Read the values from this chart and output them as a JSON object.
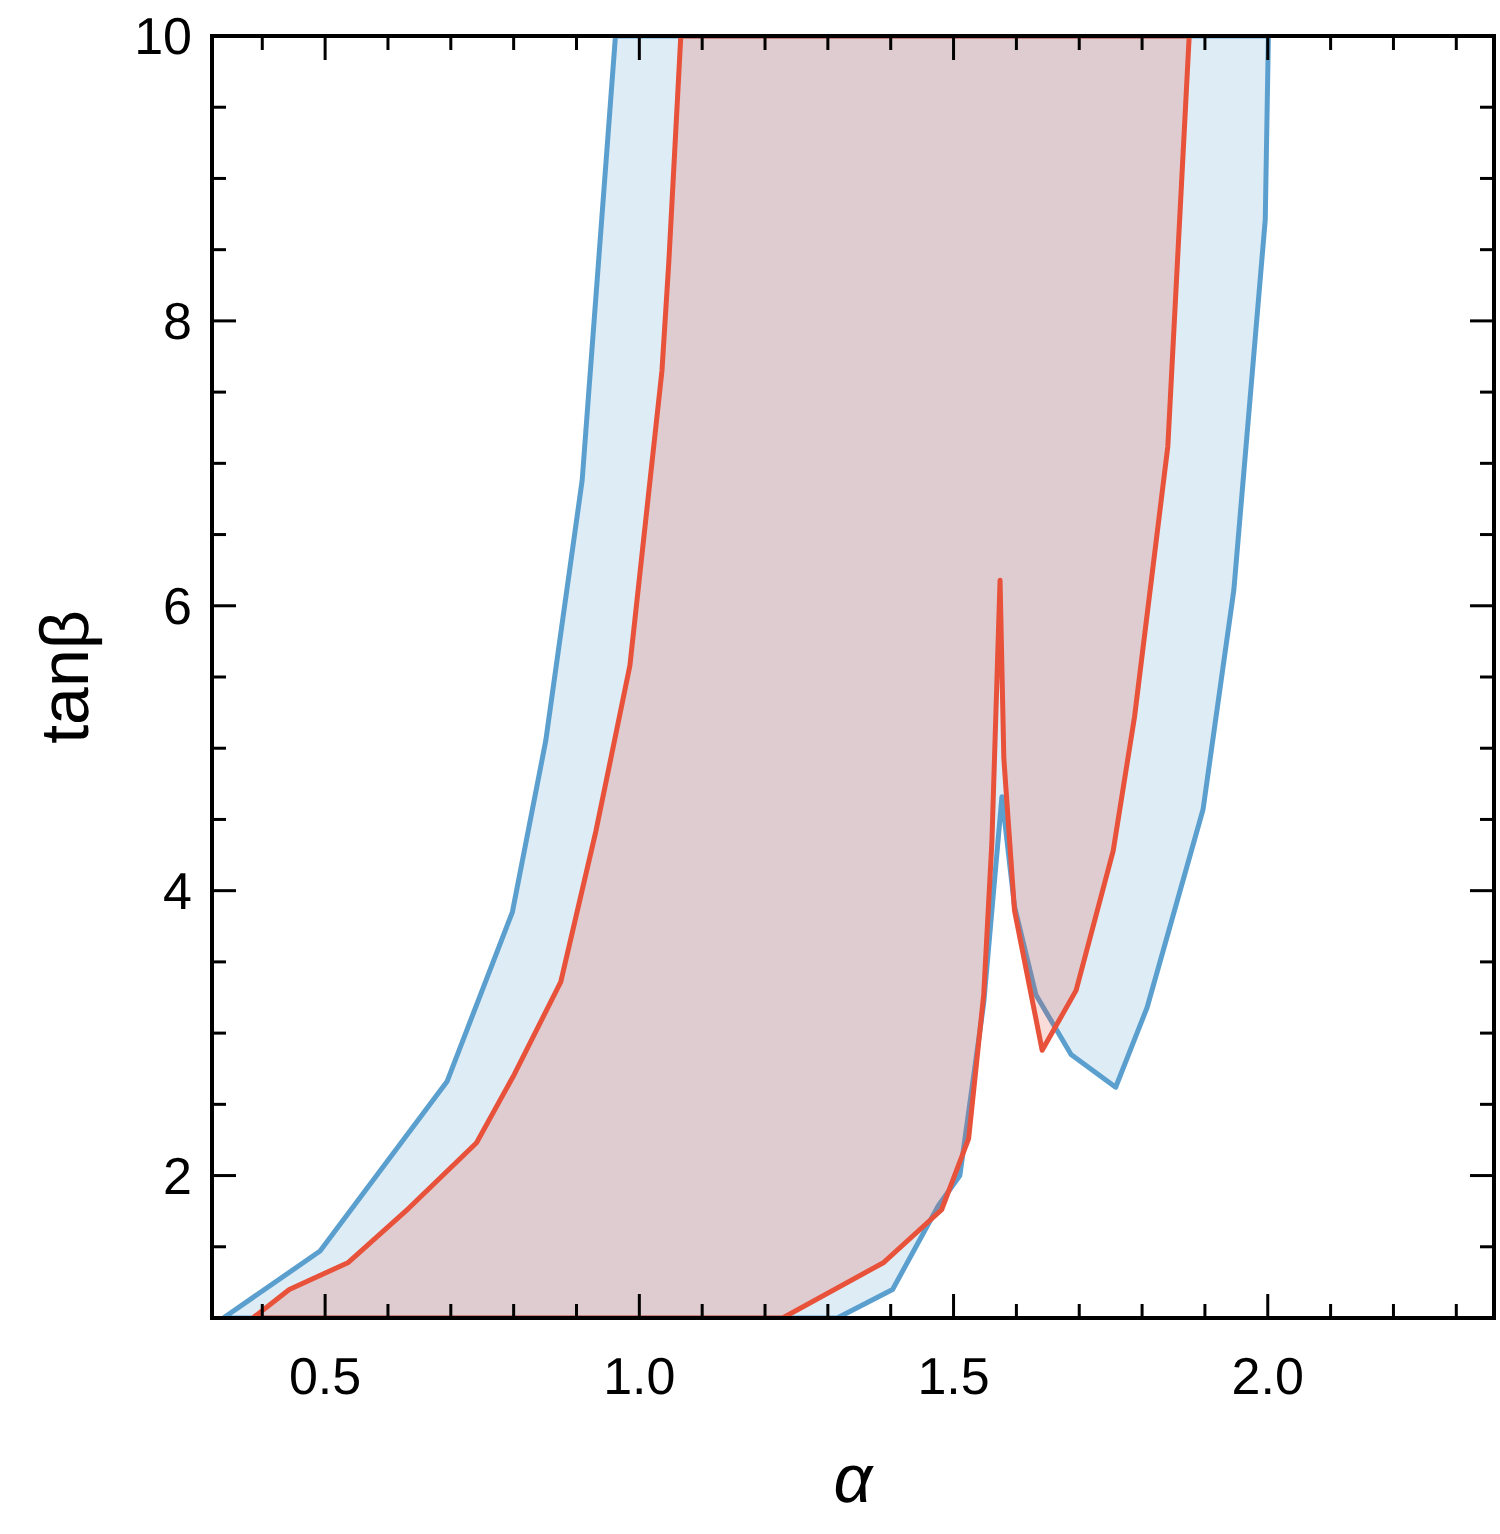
{
  "chart_data": {
    "type": "area",
    "xlabel": "α",
    "ylabel": "tanβ",
    "xlim": [
      0.32,
      2.36
    ],
    "ylim": [
      1,
      10
    ],
    "xticks": [
      {
        "value": 0.4,
        "label": null
      },
      {
        "value": 0.5,
        "label": "0.5"
      },
      {
        "value": 0.6,
        "label": null
      },
      {
        "value": 0.7,
        "label": null
      },
      {
        "value": 0.8,
        "label": null
      },
      {
        "value": 0.9,
        "label": null
      },
      {
        "value": 1.0,
        "label": "1.0"
      },
      {
        "value": 1.1,
        "label": null
      },
      {
        "value": 1.2,
        "label": null
      },
      {
        "value": 1.3,
        "label": null
      },
      {
        "value": 1.4,
        "label": null
      },
      {
        "value": 1.5,
        "label": "1.5"
      },
      {
        "value": 1.6,
        "label": null
      },
      {
        "value": 1.7,
        "label": null
      },
      {
        "value": 1.8,
        "label": null
      },
      {
        "value": 1.9,
        "label": null
      },
      {
        "value": 2.0,
        "label": "2.0"
      },
      {
        "value": 2.1,
        "label": null
      },
      {
        "value": 2.2,
        "label": null
      },
      {
        "value": 2.3,
        "label": null
      }
    ],
    "yticks": [
      {
        "value": 1.5,
        "label": null
      },
      2,
      {
        "value": 2.5,
        "label": null
      },
      {
        "value": 3,
        "label": null
      },
      {
        "value": 3.5,
        "label": null
      },
      4,
      {
        "value": 4.5,
        "label": null
      },
      {
        "value": 5,
        "label": null
      },
      {
        "value": 5.5,
        "label": null
      },
      6,
      {
        "value": 6.5,
        "label": null
      },
      {
        "value": 7,
        "label": null
      },
      {
        "value": 7.5,
        "label": null
      },
      8,
      {
        "value": 8.5,
        "label": null
      },
      {
        "value": 9,
        "label": null
      },
      {
        "value": 9.5,
        "label": null
      },
      10
    ],
    "grid": false,
    "series": [
      {
        "color": "#5b9fcf",
        "x": [
          0.338,
          0.492,
          0.694,
          0.798,
          0.851,
          0.909,
          0.962,
          2.001,
          1.996,
          1.946,
          1.897,
          1.808,
          1.758,
          1.687,
          1.631,
          1.597,
          1.577,
          1.548,
          1.51,
          1.476,
          1.403,
          1.315
        ],
        "values": [
          1,
          1.47,
          2.66,
          3.85,
          5.05,
          6.88,
          10,
          10,
          8.71,
          6.11,
          4.57,
          3.18,
          2.62,
          2.85,
          3.27,
          3.89,
          4.66,
          3.21,
          2.0,
          1.79,
          1.2,
          1
        ]
      },
      {
        "color": "#e8513a",
        "x": [
          0.385,
          0.443,
          0.537,
          0.633,
          0.741,
          0.801,
          0.875,
          0.931,
          0.985,
          1.036,
          1.047,
          1.066,
          1.875,
          1.841,
          1.788,
          1.754,
          1.695,
          1.641,
          1.597,
          1.58,
          1.574,
          1.561,
          1.548,
          1.524,
          1.481,
          1.389,
          1.228
        ],
        "values": [
          1,
          1.2,
          1.39,
          1.77,
          2.23,
          2.71,
          3.36,
          4.42,
          5.58,
          7.65,
          8.42,
          10,
          10,
          7.12,
          5.22,
          4.28,
          3.3,
          2.88,
          3.86,
          4.93,
          6.18,
          4.34,
          3.27,
          2.26,
          1.76,
          1.39,
          1
        ]
      }
    ]
  }
}
